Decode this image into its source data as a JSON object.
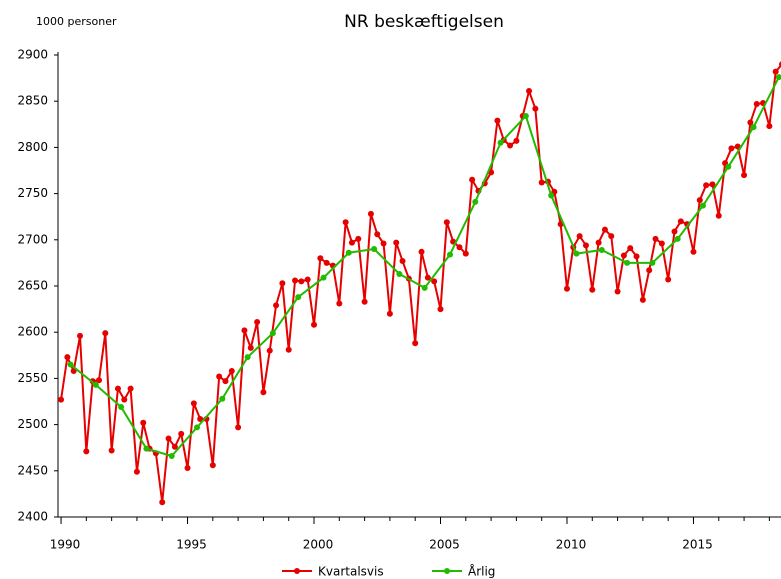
{
  "chart_data": {
    "type": "line",
    "title": "NR beskæftigelsen",
    "y_axis_label": "1000 personer",
    "ylim": [
      2400,
      2900
    ],
    "yticks": [
      2400,
      2450,
      2500,
      2550,
      2600,
      2650,
      2700,
      2750,
      2800,
      2850,
      2900
    ],
    "xlim": [
      1989.88,
      2018.46
    ],
    "xticks": [
      1990,
      1995,
      2000,
      2005,
      2010,
      2015
    ],
    "xminorticks": [
      1990,
      1991,
      1992,
      1993,
      1994,
      1995,
      1996,
      1997,
      1998,
      1999,
      2000,
      2001,
      2002,
      2003,
      2004,
      2005,
      2006,
      2007,
      2008,
      2009,
      2010,
      2011,
      2012,
      2013,
      2014,
      2015,
      2016,
      2017,
      2018
    ],
    "grid": false,
    "legend": "bottom",
    "series": [
      {
        "name": "Kvartalsvis",
        "color": "#e60000",
        "x": [
          1990,
          1990.25,
          1990.5,
          1990.75,
          1991,
          1991.25,
          1991.5,
          1991.75,
          1992,
          1992.25,
          1992.5,
          1992.75,
          1993,
          1993.25,
          1993.5,
          1993.75,
          1994,
          1994.25,
          1994.5,
          1994.75,
          1995,
          1995.25,
          1995.5,
          1995.75,
          1996,
          1996.25,
          1996.5,
          1996.75,
          1997,
          1997.25,
          1997.5,
          1997.75,
          1998,
          1998.25,
          1998.5,
          1998.75,
          1999,
          1999.25,
          1999.5,
          1999.75,
          2000,
          2000.25,
          2000.5,
          2000.75,
          2001,
          2001.25,
          2001.5,
          2001.75,
          2002,
          2002.25,
          2002.5,
          2002.75,
          2003,
          2003.25,
          2003.5,
          2003.75,
          2004,
          2004.25,
          2004.5,
          2004.75,
          2005,
          2005.25,
          2005.5,
          2005.75,
          2006,
          2006.25,
          2006.5,
          2006.75,
          2007,
          2007.25,
          2007.5,
          2007.75,
          2008,
          2008.25,
          2008.5,
          2008.75,
          2009,
          2009.25,
          2009.5,
          2009.75,
          2010,
          2010.25,
          2010.5,
          2010.75,
          2011,
          2011.25,
          2011.5,
          2011.75,
          2012,
          2012.25,
          2012.5,
          2012.75,
          2013,
          2013.25,
          2013.5,
          2013.75,
          2014,
          2014.25,
          2014.5,
          2014.75,
          2015,
          2015.25,
          2015.5,
          2015.75,
          2016,
          2016.25,
          2016.5,
          2016.75,
          2017,
          2017.25,
          2017.5,
          2017.75,
          2018,
          2018.25,
          2018.5
        ],
        "values": [
          2527,
          2573,
          2558,
          2596,
          2471,
          2547,
          2548,
          2599,
          2472,
          2539,
          2527,
          2539,
          2449,
          2502,
          2474,
          2469,
          2416,
          2485,
          2476,
          2490,
          2453,
          2523,
          2506,
          2506,
          2456,
          2552,
          2547,
          2558,
          2497,
          2602,
          2583,
          2611,
          2535,
          2580,
          2629,
          2653,
          2581,
          2656,
          2655,
          2657,
          2608,
          2680,
          2675,
          2672,
          2631,
          2719,
          2697,
          2701,
          2633,
          2728,
          2706,
          2696,
          2620,
          2697,
          2677,
          2658,
          2588,
          2687,
          2659,
          2655,
          2625,
          2719,
          2698,
          2692,
          2685,
          2765,
          2753,
          2761,
          2773,
          2829,
          2808,
          2802,
          2807,
          2834,
          2861,
          2842,
          2762,
          2763,
          2752,
          2717,
          2647,
          2692,
          2704,
          2694,
          2646,
          2697,
          2711,
          2704,
          2644,
          2683,
          2691,
          2682,
          2635,
          2667,
          2701,
          2696,
          2657,
          2709,
          2720,
          2717,
          2687,
          2743,
          2759,
          2760,
          2726,
          2783,
          2799,
          2801,
          2770,
          2827,
          2847,
          2848,
          2823,
          2882,
          2890
        ]
      },
      {
        "name": "Årlig",
        "color": "#22bb00",
        "x": [
          1990.375,
          1991.375,
          1992.375,
          1993.375,
          1994.375,
          1995.375,
          1996.375,
          1997.375,
          1998.375,
          1999.375,
          2000.375,
          2001.375,
          2002.375,
          2003.375,
          2004.375,
          2005.375,
          2006.375,
          2007.375,
          2008.375,
          2009.375,
          2010.375,
          2011.375,
          2012.375,
          2013.375,
          2014.375,
          2015.375,
          2016.375,
          2017.375,
          2018.375
        ],
        "values": [
          2565,
          2543,
          2519,
          2474,
          2466,
          2497,
          2528,
          2573,
          2599,
          2638,
          2659,
          2686,
          2690,
          2663,
          2648,
          2684,
          2741,
          2805,
          2834,
          2748,
          2685,
          2689,
          2675,
          2675,
          2701,
          2737,
          2779,
          2822,
          2876
        ]
      }
    ]
  }
}
